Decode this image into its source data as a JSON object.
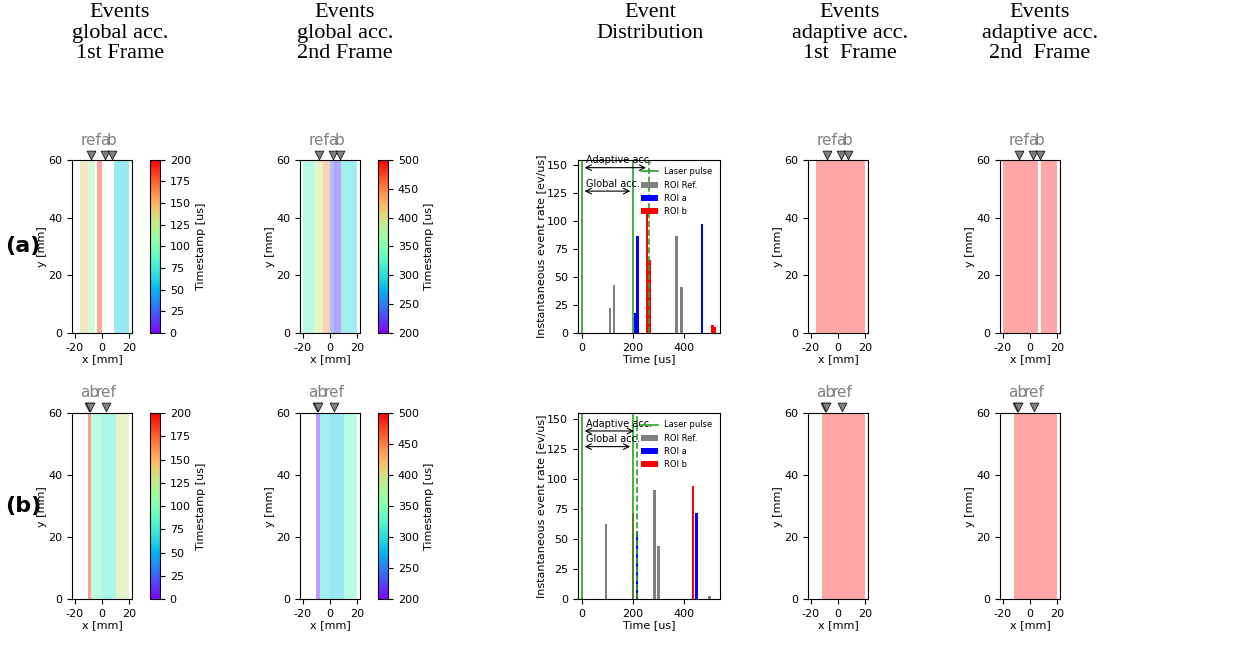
{
  "column_titles": [
    "Events\nglobal acc.\n1st Frame",
    "Events\nglobal acc.\n2nd Frame",
    "Event\nDistribution",
    "Events\nadaptive acc.\n1st  Frame",
    "Events\nadaptive acc.\n2nd  Frame"
  ],
  "row_labels": [
    "(a)",
    "(b)"
  ],
  "chart_data": [
    {
      "type": "event_map",
      "xlabel": "x [mm]",
      "ylabel": "y [mm]",
      "xlim": [
        -22,
        22
      ],
      "xticks": [
        -20,
        0,
        20
      ],
      "ylim": [
        0,
        60
      ],
      "yticks": [
        0,
        20,
        40,
        60
      ],
      "markers": [
        {
          "label": "ref",
          "x": [
            -8
          ]
        },
        {
          "label": "a",
          "x": [
            2
          ]
        },
        {
          "label": "b",
          "x": [
            7
          ]
        }
      ],
      "bands": [
        {
          "x": [
            -16,
            -10
          ],
          "timestamp": 140
        },
        {
          "x": [
            -10,
            -5
          ],
          "timestamp": 110
        },
        {
          "x": [
            -4,
            0
          ],
          "timestamp": 185
        },
        {
          "x": [
            9,
            20
          ],
          "timestamp": 60
        }
      ],
      "colorbar": {
        "label": "Timestamp [us]",
        "range": [
          0,
          200
        ],
        "ticks": [
          0,
          25,
          50,
          75,
          100,
          125,
          150,
          175,
          200
        ]
      }
    },
    {
      "type": "event_map",
      "xlabel": "x [mm]",
      "ylabel": "y [mm]",
      "xlim": [
        -22,
        22
      ],
      "xticks": [
        -20,
        0,
        20
      ],
      "ylim": [
        0,
        60
      ],
      "yticks": [
        0,
        20,
        40,
        60
      ],
      "markers": [
        {
          "label": "ref",
          "x": [
            -8
          ]
        },
        {
          "label": "a",
          "x": [
            2
          ]
        },
        {
          "label": "b",
          "x": [
            7
          ]
        }
      ],
      "bands": [
        {
          "x": [
            -20,
            -12
          ],
          "timestamp": 330
        },
        {
          "x": [
            -12,
            -5
          ],
          "timestamp": 390
        },
        {
          "x": [
            -5,
            0
          ],
          "timestamp": 440
        },
        {
          "x": [
            0,
            3
          ],
          "timestamp": 250
        },
        {
          "x": [
            3,
            8
          ],
          "timestamp": 220
        },
        {
          "x": [
            8,
            20
          ],
          "timestamp": 300
        }
      ],
      "colorbar": {
        "label": "Timestamp [us]",
        "range": [
          200,
          500
        ],
        "ticks": [
          200,
          250,
          300,
          350,
          400,
          450,
          500
        ]
      }
    },
    {
      "type": "bar",
      "xlabel": "Time [us]",
      "ylabel": "Instantaneous event rate [ev/us]",
      "xlim": [
        -15,
        540
      ],
      "xticks": [
        0,
        200,
        400
      ],
      "ylim": [
        0,
        155
      ],
      "yticks": [
        0,
        25,
        50,
        75,
        100,
        125,
        150
      ],
      "legend": "upper right",
      "laser_pulse": {
        "name": "Laser pulse",
        "color": "#2ca02c",
        "x": [
          0,
          200,
          262
        ],
        "line_style": [
          "solid",
          "solid",
          "dashed"
        ]
      },
      "annotations": [
        {
          "text": "Adaptive acc.",
          "x": [
            0,
            262
          ],
          "y": 148
        },
        {
          "text": "Global acc.",
          "x": [
            0,
            200
          ],
          "y": 127
        }
      ],
      "series": [
        {
          "name": "ROI Ref.",
          "color": "gray",
          "x": [
            0,
            110,
            125,
            370,
            390
          ],
          "values": [
            1,
            22,
            43,
            87,
            41
          ]
        },
        {
          "name": "ROI a",
          "color": "blue",
          "x": [
            208,
            218,
            470
          ],
          "values": [
            18,
            87,
            98
          ]
        },
        {
          "name": "ROI b",
          "color": "red",
          "x": [
            255,
            265,
            510,
            520
          ],
          "values": [
            112,
            65,
            7,
            5
          ]
        }
      ]
    },
    {
      "type": "event_map",
      "xlabel": "x [mm]",
      "ylabel": "y [mm]",
      "xlim": [
        -22,
        22
      ],
      "xticks": [
        -20,
        0,
        20
      ],
      "ylim": [
        0,
        60
      ],
      "yticks": [
        0,
        20,
        40,
        60
      ],
      "color": "red",
      "markers": [
        {
          "label": "ref",
          "x": [
            -8
          ]
        },
        {
          "label": "a",
          "x": [
            2
          ]
        },
        {
          "label": "b",
          "x": [
            7
          ]
        }
      ],
      "bands": [
        {
          "x": [
            -16,
            9
          ]
        },
        {
          "x": [
            9,
            20
          ]
        }
      ]
    },
    {
      "type": "event_map",
      "xlabel": "x [mm]",
      "ylabel": "y [mm]",
      "xlim": [
        -22,
        22
      ],
      "xticks": [
        -20,
        0,
        20
      ],
      "ylim": [
        0,
        60
      ],
      "yticks": [
        0,
        20,
        40,
        60
      ],
      "color": "red",
      "markers": [
        {
          "label": "ref",
          "x": [
            -8
          ]
        },
        {
          "label": "a",
          "x": [
            2
          ]
        },
        {
          "label": "b",
          "x": [
            7
          ]
        }
      ],
      "bands": [
        {
          "x": [
            -20,
            6
          ]
        },
        {
          "x": [
            8,
            20
          ]
        }
      ]
    },
    {
      "type": "event_map",
      "xlabel": "x [mm]",
      "ylabel": "y [mm]",
      "xlim": [
        -22,
        22
      ],
      "xticks": [
        -20,
        0,
        20
      ],
      "ylim": [
        0,
        60
      ],
      "yticks": [
        0,
        20,
        40,
        60
      ],
      "markers": [
        {
          "label": "ab",
          "x": [
            -9.5,
            -8.5
          ]
        },
        {
          "label": "ref",
          "x": [
            3
          ]
        }
      ],
      "bands": [
        {
          "x": [
            -10,
            -8
          ],
          "timestamp": 190
        },
        {
          "x": [
            -8,
            0
          ],
          "timestamp": 90
        },
        {
          "x": [
            0,
            10
          ],
          "timestamp": 75
        },
        {
          "x": [
            10,
            20
          ],
          "timestamp": 130
        }
      ],
      "colorbar": {
        "label": "Timestamp [us]",
        "range": [
          0,
          200
        ],
        "ticks": [
          0,
          25,
          50,
          75,
          100,
          125,
          150,
          175,
          200
        ]
      }
    },
    {
      "type": "event_map",
      "xlabel": "x [mm]",
      "ylabel": "y [mm]",
      "xlim": [
        -22,
        22
      ],
      "xticks": [
        -20,
        0,
        20
      ],
      "ylim": [
        0,
        60
      ],
      "yticks": [
        0,
        20,
        40,
        60
      ],
      "markers": [
        {
          "label": "ab",
          "x": [
            -9.5,
            -8.5
          ]
        },
        {
          "label": "ref",
          "x": [
            3
          ]
        }
      ],
      "bands": [
        {
          "x": [
            -10,
            -7
          ],
          "timestamp": 210
        },
        {
          "x": [
            -7,
            0
          ],
          "timestamp": 300
        },
        {
          "x": [
            0,
            10
          ],
          "timestamp": 290
        },
        {
          "x": [
            10,
            20
          ],
          "timestamp": 330
        }
      ],
      "colorbar": {
        "label": "Timestamp [us]",
        "range": [
          200,
          500
        ],
        "ticks": [
          200,
          250,
          300,
          350,
          400,
          450,
          500
        ]
      }
    },
    {
      "type": "bar",
      "xlabel": "Time [us]",
      "ylabel": "Instantaneous event rate [ev/us]",
      "xlim": [
        -15,
        540
      ],
      "xticks": [
        0,
        200,
        400
      ],
      "ylim": [
        0,
        155
      ],
      "yticks": [
        0,
        25,
        50,
        75,
        100,
        125,
        150
      ],
      "legend": "upper right",
      "laser_pulse": {
        "name": "Laser pulse",
        "color": "#2ca02c",
        "x": [
          0,
          200,
          215
        ],
        "line_style": [
          "solid",
          "solid",
          "dashed"
        ]
      },
      "annotations": [
        {
          "text": "Adaptive acc.",
          "x": [
            0,
            215
          ],
          "y": 140
        },
        {
          "text": "Global acc.",
          "x": [
            0,
            200
          ],
          "y": 127
        }
      ],
      "series": [
        {
          "name": "ROI Ref.",
          "color": "gray",
          "x": [
            0,
            95,
            285,
            300,
            500
          ],
          "values": [
            2,
            63,
            91,
            44,
            3
          ]
        },
        {
          "name": "ROI a",
          "color": "blue",
          "x": [
            215,
            448
          ],
          "values": [
            57,
            72
          ]
        },
        {
          "name": "ROI b",
          "color": "red",
          "x": [
            200,
            435
          ],
          "values": [
            72,
            94
          ]
        }
      ]
    },
    {
      "type": "event_map",
      "xlabel": "x [mm]",
      "ylabel": "y [mm]",
      "xlim": [
        -22,
        22
      ],
      "xticks": [
        -20,
        0,
        20
      ],
      "ylim": [
        0,
        60
      ],
      "yticks": [
        0,
        20,
        40,
        60
      ],
      "color": "red",
      "markers": [
        {
          "label": "ab",
          "x": [
            -9.5,
            -8.5
          ]
        },
        {
          "label": "ref",
          "x": [
            3
          ]
        }
      ],
      "bands": [
        {
          "x": [
            -12,
            20
          ]
        }
      ]
    },
    {
      "type": "event_map",
      "xlabel": "x [mm]",
      "ylabel": "y [mm]",
      "xlim": [
        -22,
        22
      ],
      "xticks": [
        -20,
        0,
        20
      ],
      "ylim": [
        0,
        60
      ],
      "yticks": [
        0,
        20,
        40,
        60
      ],
      "color": "red",
      "markers": [
        {
          "label": "ab",
          "x": [
            -9.5,
            -8.5
          ]
        },
        {
          "label": "ref",
          "x": [
            3
          ]
        }
      ],
      "bands": [
        {
          "x": [
            -12,
            20
          ]
        }
      ]
    }
  ]
}
